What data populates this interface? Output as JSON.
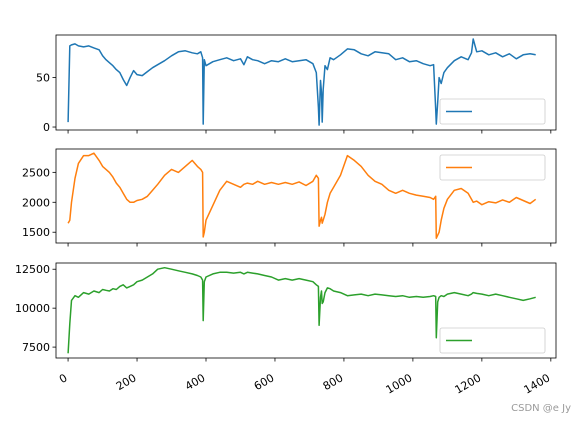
{
  "chart_data": [
    {
      "type": "line",
      "color": "#1f77b4",
      "ylim": [
        -3,
        93
      ],
      "yticks": [
        0,
        50
      ],
      "legend_label": "",
      "legend_position": "lower right",
      "series": [
        {
          "x": [
            0,
            5,
            10,
            20,
            30,
            45,
            60,
            75,
            90,
            100,
            110,
            120,
            130,
            140,
            150,
            160,
            170,
            180,
            190,
            200,
            215,
            230,
            245,
            260,
            280,
            300,
            320,
            340,
            360,
            375,
            385,
            390,
            392,
            395,
            400,
            420,
            440,
            460,
            480,
            500,
            510,
            520,
            535,
            550,
            570,
            590,
            610,
            630,
            650,
            670,
            690,
            710,
            720,
            726,
            728,
            732,
            735,
            737,
            740,
            745,
            752,
            760,
            770,
            790,
            810,
            830,
            850,
            870,
            890,
            910,
            930,
            950,
            970,
            990,
            1010,
            1030,
            1050,
            1060,
            1066,
            1068,
            1072,
            1076,
            1082,
            1090,
            1100,
            1120,
            1140,
            1160,
            1170,
            1175,
            1185,
            1200,
            1220,
            1240,
            1260,
            1280,
            1300,
            1320,
            1340,
            1356
          ],
          "y": [
            5,
            82,
            83,
            84,
            82,
            81,
            82,
            80,
            78,
            72,
            68,
            65,
            62,
            58,
            55,
            48,
            42,
            50,
            57,
            53,
            52,
            56,
            60,
            63,
            67,
            72,
            76,
            77,
            75,
            74,
            76,
            70,
            3,
            68,
            62,
            66,
            68,
            70,
            67,
            69,
            63,
            71,
            68,
            67,
            64,
            67,
            66,
            69,
            66,
            67,
            68,
            64,
            55,
            20,
            2,
            47,
            35,
            5,
            38,
            62,
            58,
            70,
            68,
            73,
            79,
            78,
            74,
            72,
            76,
            75,
            74,
            68,
            70,
            66,
            67,
            64,
            62,
            63,
            18,
            3,
            25,
            50,
            44,
            55,
            60,
            67,
            71,
            68,
            75,
            89,
            76,
            77,
            73,
            75,
            71,
            74,
            69,
            73,
            74,
            73
          ]
        }
      ]
    },
    {
      "type": "line",
      "color": "#ff7f0e",
      "ylim": [
        1320,
        2890
      ],
      "yticks": [
        1500,
        2000,
        2500
      ],
      "legend_label": "",
      "legend_position": "upper right",
      "series": [
        {
          "x": [
            0,
            5,
            10,
            20,
            30,
            45,
            60,
            75,
            90,
            100,
            110,
            120,
            130,
            140,
            150,
            160,
            170,
            180,
            190,
            200,
            215,
            230,
            245,
            260,
            280,
            300,
            320,
            340,
            360,
            375,
            385,
            390,
            392,
            395,
            400,
            420,
            440,
            460,
            480,
            500,
            510,
            520,
            535,
            550,
            570,
            590,
            610,
            630,
            650,
            670,
            690,
            710,
            720,
            726,
            728,
            732,
            735,
            737,
            740,
            745,
            752,
            760,
            770,
            790,
            810,
            830,
            850,
            870,
            890,
            910,
            930,
            950,
            970,
            990,
            1010,
            1030,
            1050,
            1060,
            1066,
            1068,
            1072,
            1076,
            1082,
            1090,
            1100,
            1120,
            1140,
            1160,
            1170,
            1175,
            1185,
            1200,
            1220,
            1240,
            1260,
            1280,
            1300,
            1320,
            1340,
            1356
          ],
          "y": [
            1650,
            1700,
            2000,
            2400,
            2650,
            2780,
            2780,
            2820,
            2700,
            2600,
            2550,
            2500,
            2420,
            2320,
            2250,
            2150,
            2050,
            2000,
            2000,
            2030,
            2050,
            2100,
            2200,
            2300,
            2450,
            2550,
            2500,
            2600,
            2700,
            2600,
            2550,
            2500,
            1420,
            1500,
            1700,
            1950,
            2200,
            2350,
            2300,
            2250,
            2300,
            2320,
            2300,
            2350,
            2300,
            2330,
            2300,
            2330,
            2300,
            2340,
            2280,
            2350,
            2450,
            2400,
            1600,
            1700,
            1750,
            1650,
            1700,
            1800,
            2000,
            2150,
            2250,
            2450,
            2780,
            2700,
            2600,
            2450,
            2350,
            2300,
            2200,
            2150,
            2200,
            2150,
            2120,
            2100,
            2080,
            2050,
            2100,
            1400,
            1450,
            1500,
            1700,
            1900,
            2050,
            2200,
            2230,
            2150,
            2050,
            2000,
            2020,
            1960,
            2010,
            1990,
            2040,
            2000,
            2080,
            2030,
            1980,
            2050
          ]
        }
      ]
    },
    {
      "type": "line",
      "color": "#2ca02c",
      "ylim": [
        6800,
        12900
      ],
      "yticks": [
        7500,
        10000,
        12500
      ],
      "legend_label": "",
      "legend_position": "lower right",
      "series": [
        {
          "x": [
            0,
            5,
            10,
            20,
            30,
            45,
            60,
            75,
            90,
            100,
            110,
            120,
            130,
            140,
            150,
            160,
            170,
            180,
            190,
            200,
            215,
            230,
            245,
            260,
            280,
            300,
            320,
            340,
            360,
            375,
            385,
            390,
            392,
            395,
            400,
            420,
            440,
            460,
            480,
            500,
            510,
            520,
            535,
            550,
            570,
            590,
            610,
            630,
            650,
            670,
            690,
            710,
            720,
            726,
            728,
            732,
            735,
            737,
            740,
            745,
            752,
            760,
            770,
            790,
            810,
            830,
            850,
            870,
            890,
            910,
            930,
            950,
            970,
            990,
            1010,
            1030,
            1050,
            1060,
            1066,
            1068,
            1072,
            1076,
            1082,
            1090,
            1100,
            1120,
            1140,
            1160,
            1170,
            1175,
            1185,
            1200,
            1220,
            1240,
            1260,
            1280,
            1300,
            1320,
            1340,
            1356
          ],
          "y": [
            7100,
            9000,
            10500,
            10800,
            10700,
            11000,
            10900,
            11100,
            11000,
            11200,
            11150,
            11100,
            11250,
            11200,
            11400,
            11500,
            11300,
            11400,
            11500,
            11700,
            11800,
            12000,
            12200,
            12500,
            12600,
            12500,
            12400,
            12300,
            12200,
            12100,
            12000,
            11800,
            9200,
            11700,
            12000,
            12200,
            12300,
            12300,
            12250,
            12300,
            12200,
            12300,
            12250,
            12200,
            12100,
            12000,
            11800,
            11900,
            11800,
            11900,
            11800,
            11700,
            11500,
            11400,
            8900,
            10700,
            11100,
            10300,
            10400,
            11000,
            11300,
            11250,
            11100,
            11000,
            10800,
            10850,
            10900,
            10800,
            10900,
            10850,
            10800,
            10750,
            10800,
            10700,
            10750,
            10700,
            10750,
            10800,
            10750,
            8100,
            10400,
            10700,
            10800,
            10750,
            10900,
            11000,
            10900,
            10800,
            10900,
            11000,
            10950,
            10900,
            10800,
            10900,
            10800,
            10700,
            10600,
            10500,
            10600,
            10700
          ]
        }
      ]
    }
  ],
  "x_axis": {
    "xlim": [
      -35,
      1415
    ],
    "ticks": [
      0,
      200,
      400,
      600,
      800,
      1000,
      1200,
      1400
    ],
    "tick_labels": [
      "0",
      "200",
      "400",
      "600",
      "800",
      "1000",
      "1200",
      "1400"
    ]
  },
  "watermark": "CSDN @e  Jy"
}
